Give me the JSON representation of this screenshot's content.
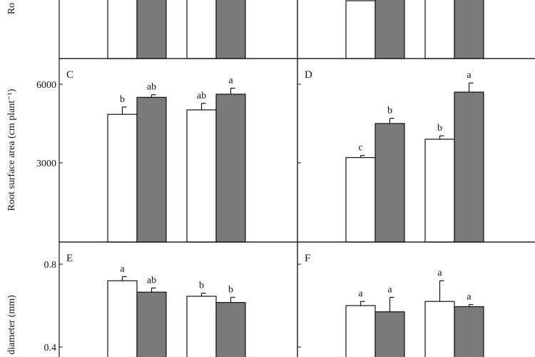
{
  "chart_data": [
    {
      "type": "bar",
      "panel": "",
      "ylabel": "Ro",
      "ylim": null,
      "yticks": [],
      "colors": [
        "#ffffff",
        "#7a7a7a"
      ],
      "groups": [
        {
          "bars": [
            {
              "value": null,
              "sig": ""
            },
            {
              "value": null,
              "sig": ""
            }
          ]
        },
        {
          "bars": [
            {
              "value": null,
              "sig": ""
            },
            {
              "value": null,
              "sig": ""
            }
          ]
        }
      ]
    },
    {
      "type": "bar",
      "panel": "",
      "ylabel": "",
      "ylim": null,
      "yticks": [],
      "colors": [
        "#ffffff",
        "#7a7a7a"
      ],
      "groups": [
        {
          "bars": [
            {
              "value": null,
              "sig": ""
            },
            {
              "value": null,
              "sig": ""
            }
          ]
        },
        {
          "bars": [
            {
              "value": null,
              "sig": ""
            },
            {
              "value": null,
              "sig": ""
            }
          ]
        }
      ]
    },
    {
      "type": "bar",
      "panel": "C",
      "ylabel": "Root surface area (cm plant⁻¹)",
      "ylim": [
        0,
        7000
      ],
      "yticks": [
        3000,
        6000
      ],
      "colors": [
        "#ffffff",
        "#7a7a7a"
      ],
      "groups": [
        {
          "bars": [
            {
              "value": 4850,
              "err": 280,
              "sig": "b"
            },
            {
              "value": 5500,
              "err": 100,
              "sig": "ab"
            }
          ]
        },
        {
          "bars": [
            {
              "value": 5020,
              "err": 250,
              "sig": "ab"
            },
            {
              "value": 5620,
              "err": 230,
              "sig": "a"
            }
          ]
        }
      ]
    },
    {
      "type": "bar",
      "panel": "D",
      "ylabel": "",
      "ylim": [
        0,
        7000
      ],
      "yticks": [
        3000,
        6000
      ],
      "colors": [
        "#ffffff",
        "#7a7a7a"
      ],
      "groups": [
        {
          "bars": [
            {
              "value": 3200,
              "err": 80,
              "sig": "c"
            },
            {
              "value": 4500,
              "err": 200,
              "sig": "b"
            }
          ]
        },
        {
          "bars": [
            {
              "value": 3900,
              "err": 130,
              "sig": "b"
            },
            {
              "value": 5700,
              "err": 350,
              "sig": "a"
            }
          ]
        }
      ]
    },
    {
      "type": "bar",
      "panel": "E",
      "ylabel": "diameter (mm)",
      "ylim": [
        0.4,
        0.9
      ],
      "yticks": [
        0.4,
        0.8
      ],
      "colors": [
        "#ffffff",
        "#7a7a7a"
      ],
      "groups": [
        {
          "bars": [
            {
              "value": 0.72,
              "err": 0.02,
              "sig": "a"
            },
            {
              "value": 0.665,
              "err": 0.02,
              "sig": "ab"
            }
          ]
        },
        {
          "bars": [
            {
              "value": 0.645,
              "err": 0.015,
              "sig": "b"
            },
            {
              "value": 0.615,
              "err": 0.025,
              "sig": "b"
            }
          ]
        }
      ]
    },
    {
      "type": "bar",
      "panel": "F",
      "ylabel": "",
      "ylim": [
        0.4,
        0.9
      ],
      "yticks": [
        0.4,
        0.8
      ],
      "colors": [
        "#ffffff",
        "#7a7a7a"
      ],
      "groups": [
        {
          "bars": [
            {
              "value": 0.6,
              "err": 0.02,
              "sig": "a"
            },
            {
              "value": 0.57,
              "err": 0.07,
              "sig": "a"
            }
          ]
        },
        {
          "bars": [
            {
              "value": 0.62,
              "err": 0.1,
              "sig": "a"
            },
            {
              "value": 0.595,
              "err": 0.01,
              "sig": "a"
            }
          ]
        }
      ]
    }
  ]
}
